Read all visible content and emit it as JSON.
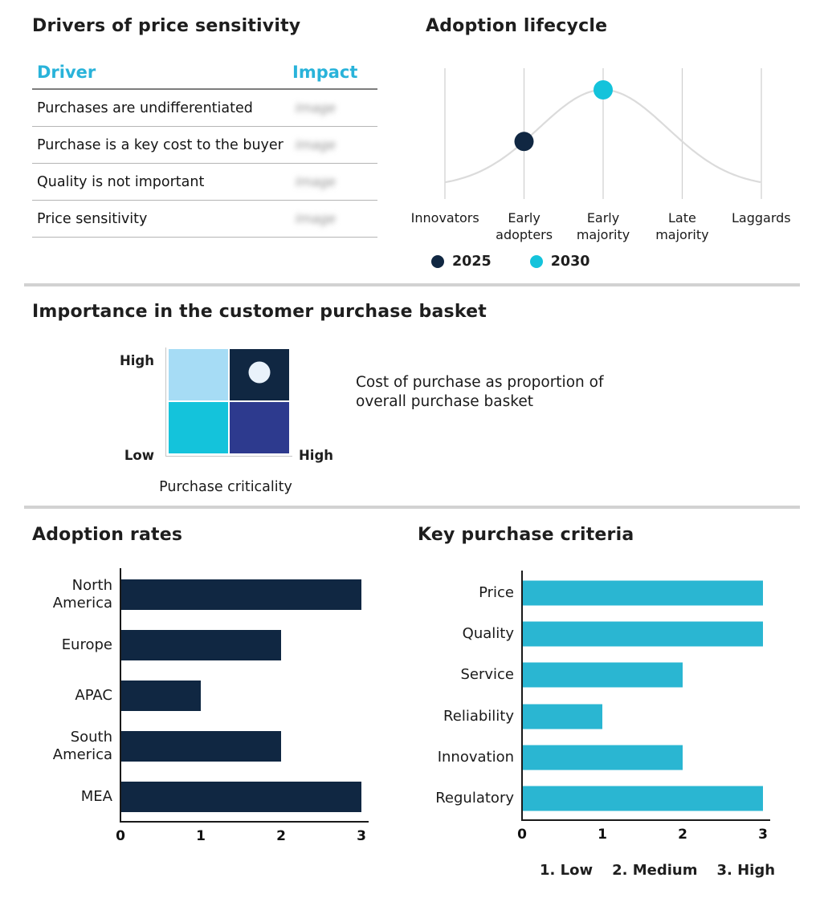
{
  "colors": {
    "navy": "#102742",
    "cyan": "#2ab6d2",
    "bright_cyan": "#14c3db",
    "indigo": "#2d3a8e",
    "light_blue": "#a6dcf5",
    "header_cyan": "#29b3da",
    "curve": "#dbdbdb",
    "grid": "#cfcfcf",
    "divider": "#d2d2d2",
    "axis": "#1a1a1a",
    "quadrant_marker_dot": "#e9f2fb"
  },
  "chart_data": [
    {
      "type": "table",
      "title": "Drivers of price sensitivity",
      "columns": [
        "Driver",
        "Impact"
      ],
      "rows": [
        [
          "Purchases are undifferentiated",
          "Image"
        ],
        [
          "Purchase is a key cost to the buyer",
          "Image"
        ],
        [
          "Quality is not important",
          "Image"
        ],
        [
          "Price sensitivity",
          "Image"
        ]
      ],
      "impact_values_blurred": true
    },
    {
      "type": "line",
      "title": "Adoption lifecycle",
      "shape": "bell curve peaking at Early majority",
      "categories": [
        "Innovators",
        "Early adopters",
        "Early majority",
        "Late majority",
        "Laggards"
      ],
      "series": [
        {
          "name": "2025",
          "category": "Early adopters",
          "color": "#102742"
        },
        {
          "name": "2030",
          "category": "Early majority",
          "color": "#14c3db"
        }
      ],
      "legend_position": "bottom",
      "grid": "vertical gridline at each category"
    },
    {
      "type": "heatmap",
      "title": "Importance in the customer purchase basket",
      "xlabel": "Purchase criticality",
      "y_axis_top_label": "High",
      "y_axis_bottom_label": "Low",
      "x_axis_right_label": "High",
      "annotation": "Cost of purchase as proportion of overall purchase basket",
      "quadrants": [
        {
          "position": "top-left",
          "color": "#a6dcf5"
        },
        {
          "position": "top-right",
          "color": "#102742",
          "marker": "white-dot"
        },
        {
          "position": "bottom-left",
          "color": "#14c3db"
        },
        {
          "position": "bottom-right",
          "color": "#2d3a8e"
        }
      ]
    },
    {
      "type": "bar",
      "title": "Adoption rates",
      "orientation": "horizontal",
      "categories": [
        "North America",
        "Europe",
        "APAC",
        "South America",
        "MEA"
      ],
      "values": [
        3,
        2,
        1,
        2,
        3
      ],
      "xlim": [
        0,
        3
      ],
      "ticks": [
        "0",
        "1",
        "2",
        "3"
      ],
      "bar_color": "#102742"
    },
    {
      "type": "bar",
      "title": "Key purchase criteria",
      "orientation": "horizontal",
      "categories": [
        "Price",
        "Quality",
        "Service",
        "Reliability",
        "Innovation",
        "Regulatory"
      ],
      "values": [
        3,
        3,
        2,
        1,
        2,
        3
      ],
      "xlim": [
        0,
        3
      ],
      "ticks": [
        "0",
        "1",
        "2",
        "3"
      ],
      "bar_color": "#2ab6d2",
      "legend_notes": [
        "1. Low",
        "2. Medium",
        "3. High"
      ]
    }
  ]
}
